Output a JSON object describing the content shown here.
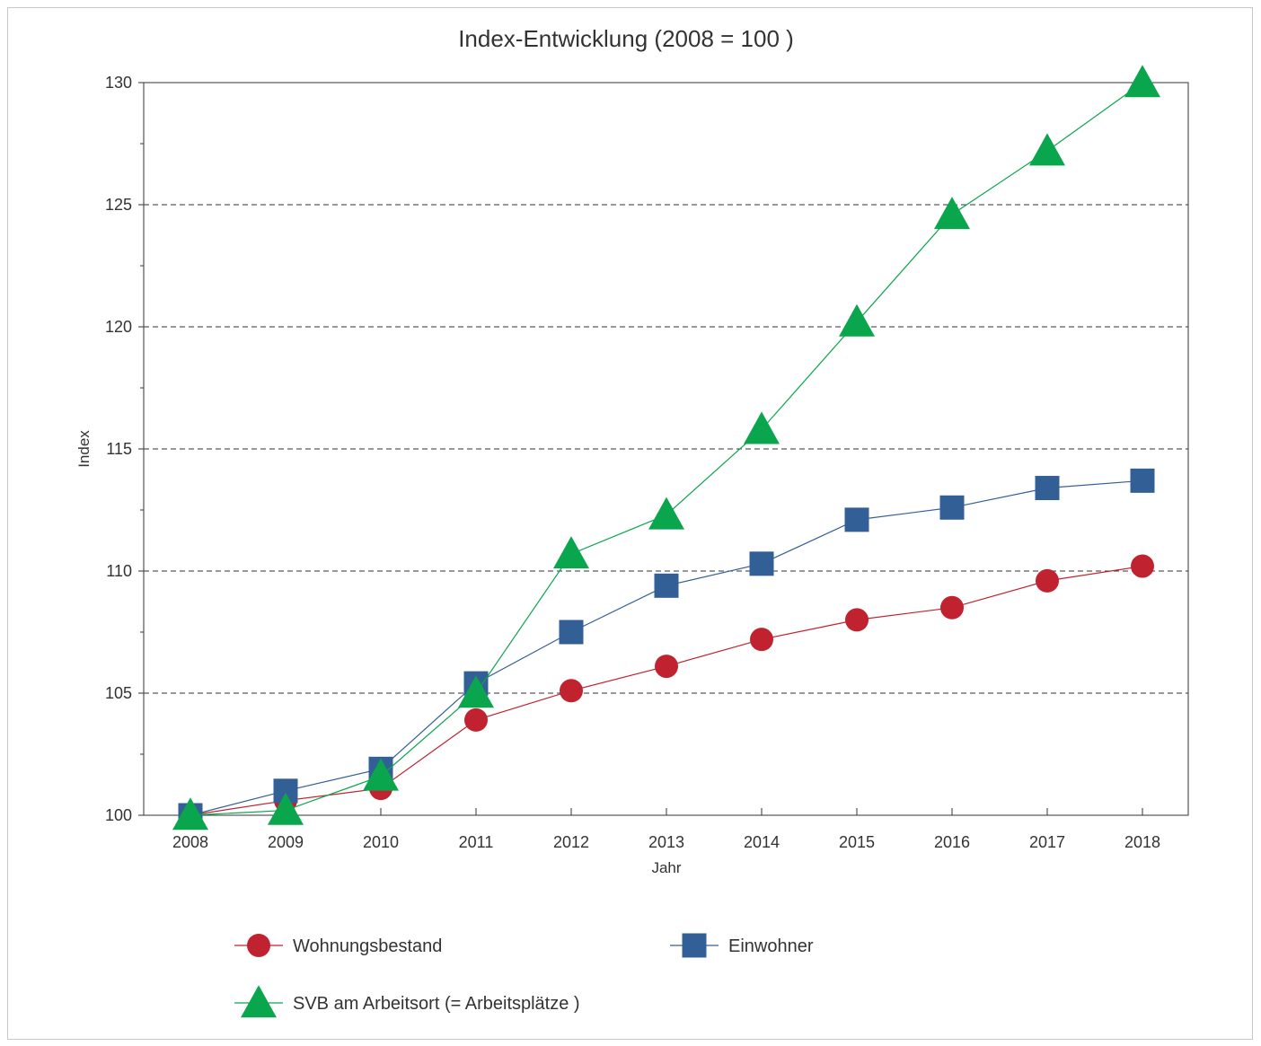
{
  "chart_data": {
    "type": "line",
    "title": "Index-Entwicklung    (2008 = 100 )",
    "xlabel": "Jahr",
    "ylabel": "Index",
    "x": [
      "2008",
      "2009",
      "2010",
      "2011",
      "2012",
      "2013",
      "2014",
      "2015",
      "2016",
      "2017",
      "2018"
    ],
    "ylim": [
      100,
      130
    ],
    "yticks": [
      "100",
      "105",
      "110",
      "115",
      "120",
      "125",
      "130"
    ],
    "grid": "horizontal dashed",
    "legend_position": "bottom",
    "series": [
      {
        "name": "Wohnungsbestand",
        "marker": "circle",
        "color": "#c0222f",
        "values": [
          100,
          100.6,
          101.1,
          103.9,
          105.1,
          106.1,
          107.2,
          108.0,
          108.5,
          109.6,
          110.2
        ]
      },
      {
        "name": "Einwohner",
        "marker": "square",
        "color": "#335f97",
        "values": [
          100,
          101.0,
          101.9,
          105.4,
          107.5,
          109.4,
          110.3,
          112.1,
          112.6,
          113.4,
          113.7
        ]
      },
      {
        "name": "SVB am Arbeitsort    (= Arbeitsplätze )",
        "marker": "triangle",
        "color": "#0aa64d",
        "values": [
          100,
          100.2,
          101.6,
          105.0,
          110.7,
          112.3,
          115.8,
          120.2,
          124.6,
          127.2,
          130.0
        ]
      }
    ]
  }
}
